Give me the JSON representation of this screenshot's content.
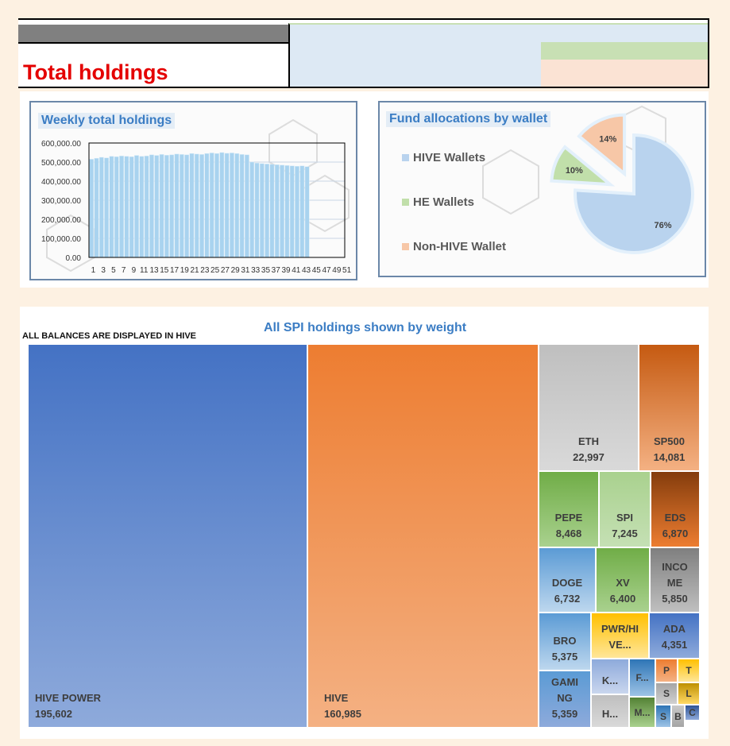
{
  "header": {
    "title": "Total holdings"
  },
  "weekly_chart": {
    "title": "Weekly total holdings"
  },
  "allocation_chart": {
    "title": "Fund allocations by wallet"
  },
  "treemap": {
    "title": "All SPI holdings shown by weight",
    "note": "ALL BALANCES ARE DISPLAYED IN HIVE"
  },
  "colors": {
    "accent_title": "#e40000",
    "chart_title": "#3b7dc4",
    "hive_wallets": "#b9d3ee",
    "he_wallets": "#c1dfaa",
    "non_hive": "#f7c7a7"
  },
  "chart_data": [
    {
      "type": "bar",
      "title": "Weekly total holdings",
      "x": [
        1,
        2,
        3,
        4,
        5,
        6,
        7,
        8,
        9,
        10,
        11,
        12,
        13,
        14,
        15,
        16,
        17,
        18,
        19,
        20,
        21,
        22,
        23,
        24,
        25,
        26,
        27,
        28,
        29,
        30,
        31,
        32,
        33,
        34,
        35,
        36,
        37,
        38,
        39,
        40,
        41,
        42,
        43,
        44,
        45,
        46,
        47,
        48,
        49,
        50,
        51
      ],
      "x_tick_labels": [
        "1",
        "3",
        "5",
        "7",
        "9",
        "11",
        "13",
        "15",
        "17",
        "19",
        "21",
        "23",
        "25",
        "27",
        "29",
        "31",
        "33",
        "35",
        "37",
        "39",
        "41",
        "43",
        "45",
        "47",
        "49",
        "51"
      ],
      "values": [
        515000,
        520000,
        525000,
        522000,
        530000,
        528000,
        532000,
        530000,
        528000,
        535000,
        530000,
        532000,
        538000,
        535000,
        540000,
        536000,
        538000,
        542000,
        540000,
        538000,
        545000,
        542000,
        540000,
        545000,
        548000,
        545000,
        550000,
        546000,
        548000,
        545000,
        540000,
        538000,
        500000,
        495000,
        492000,
        490000,
        488000,
        486000,
        484000,
        482000,
        480000,
        478000,
        480000,
        476000,
        0,
        0,
        0,
        0,
        0,
        0,
        0
      ],
      "y_tick_labels": [
        "600,000.00",
        "500,000.00",
        "400,000.00",
        "300,000.00",
        "200,000.00",
        "100,000.00",
        "0.00"
      ],
      "ylim": [
        0,
        600000
      ],
      "xlabel": "",
      "ylabel": ""
    },
    {
      "type": "pie",
      "title": "Fund allocations by wallet",
      "labels": [
        "HIVE Wallets",
        "HE Wallets",
        "Non-HIVE Wallet"
      ],
      "values": [
        76,
        10,
        14
      ],
      "value_labels": [
        "76%",
        "10%",
        "14%"
      ],
      "legend": "left"
    },
    {
      "type": "treemap",
      "title": "All SPI holdings shown by weight",
      "items": [
        {
          "name": "HIVE POWER",
          "value": 195602,
          "value_label": "195,602"
        },
        {
          "name": "HIVE",
          "value": 160985,
          "value_label": "160,985"
        },
        {
          "name": "ETH",
          "value": 22997,
          "value_label": "22,997"
        },
        {
          "name": "SP500",
          "value": 14081,
          "value_label": "14,081"
        },
        {
          "name": "PEPE",
          "value": 8468,
          "value_label": "8,468"
        },
        {
          "name": "SPI",
          "value": 7245,
          "value_label": "7,245"
        },
        {
          "name": "EDS",
          "value": 6870,
          "value_label": "6,870"
        },
        {
          "name": "DOGE",
          "value": 6732,
          "value_label": "6,732"
        },
        {
          "name": "XV",
          "value": 6400,
          "value_label": "6,400"
        },
        {
          "name": "INCO\nME",
          "value": 5850,
          "value_label": "5,850"
        },
        {
          "name": "BRO",
          "value": 5375,
          "value_label": "5,375"
        },
        {
          "name": "PWR/HI\nVE...",
          "value": null,
          "value_label": ""
        },
        {
          "name": "ADA",
          "value": 4351,
          "value_label": "4,351"
        },
        {
          "name": "GAMI\nNG",
          "value": 5359,
          "value_label": "5,359"
        },
        {
          "name": "K...",
          "value": null,
          "value_label": ""
        },
        {
          "name": "F...",
          "value": null,
          "value_label": ""
        },
        {
          "name": "H...",
          "value": null,
          "value_label": ""
        },
        {
          "name": "M...",
          "value": null,
          "value_label": ""
        },
        {
          "name": "P",
          "value": null,
          "value_label": ""
        },
        {
          "name": "T",
          "value": null,
          "value_label": ""
        },
        {
          "name": "S",
          "value": null,
          "value_label": ""
        },
        {
          "name": "L",
          "value": null,
          "value_label": ""
        },
        {
          "name": "C",
          "value": null,
          "value_label": ""
        },
        {
          "name": "S",
          "value": null,
          "value_label": ""
        },
        {
          "name": "B",
          "value": null,
          "value_label": ""
        }
      ]
    }
  ]
}
